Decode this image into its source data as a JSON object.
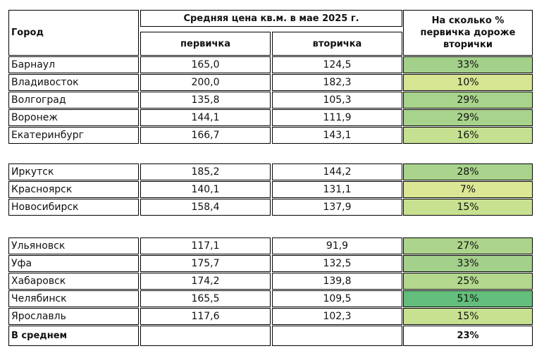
{
  "header": {
    "city": "Город",
    "price": "Средняя цена кв.м. в мае 2025 г.",
    "primary": "первичка",
    "secondary": "вторичка",
    "diff": "На сколько % первичка дороже вторички"
  },
  "groups": [
    {
      "rows": [
        {
          "city": "Барнаул",
          "primary": "165,0",
          "secondary": "124,5",
          "diff": "33%",
          "color": "#a3d08a"
        },
        {
          "city": "Владивосток",
          "primary": "200,0",
          "secondary": "182,3",
          "diff": "10%",
          "color": "#d5e592"
        },
        {
          "city": "Волгоград",
          "primary": "135,8",
          "secondary": "105,3",
          "diff": "29%",
          "color": "#a8d38c"
        },
        {
          "city": "Воронеж",
          "primary": "144,1",
          "secondary": "111,9",
          "diff": "29%",
          "color": "#a8d38c"
        },
        {
          "city": "Екатеринбург",
          "primary": "166,7",
          "secondary": "143,1",
          "diff": "16%",
          "color": "#c5e090"
        }
      ]
    },
    {
      "rows": [
        {
          "city": "Иркутск",
          "primary": "185,2",
          "secondary": "144,2",
          "diff": "28%",
          "color": "#a9d38c"
        },
        {
          "city": "Красноярск",
          "primary": "140,1",
          "secondary": "131,1",
          "diff": "7%",
          "color": "#dbe794"
        },
        {
          "city": "Новосибирск",
          "primary": "158,4",
          "secondary": "137,9",
          "diff": "15%",
          "color": "#c8e190"
        }
      ]
    },
    {
      "rows": [
        {
          "city": "Ульяновск",
          "primary": "117,1",
          "secondary": "91,9",
          "diff": "27%",
          "color": "#acd48c"
        },
        {
          "city": "Уфа",
          "primary": "175,7",
          "secondary": "132,5",
          "diff": "33%",
          "color": "#a3d08a"
        },
        {
          "city": "Хабаровск",
          "primary": "174,2",
          "secondary": "139,8",
          "diff": "25%",
          "color": "#b2d78d"
        },
        {
          "city": "Челябинск",
          "primary": "165,5",
          "secondary": "109,5",
          "diff": "51%",
          "color": "#63be7b"
        },
        {
          "city": "Ярославль",
          "primary": "117,6",
          "secondary": "102,3",
          "diff": "15%",
          "color": "#c8e190"
        }
      ]
    }
  ],
  "total": {
    "label": "В среднем",
    "diff": "23%"
  }
}
